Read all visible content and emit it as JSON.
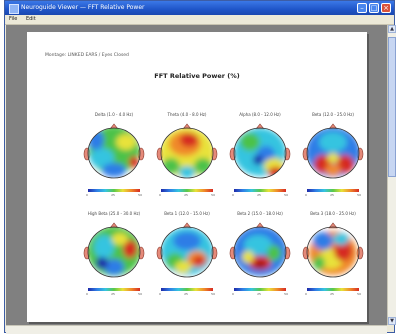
{
  "window": {
    "title": "Neuroguide Viewer — FFT Relative Power",
    "menu": [
      "File",
      "Edit"
    ]
  },
  "page": {
    "header_note": "Montage: LINKED EARS / Eyes Closed",
    "heading": "FFT Relative Power (%)"
  },
  "maps": [
    {
      "label": "Delta (1.0 - 4.0 Hz)",
      "ticks": [
        "0",
        "25",
        "50"
      ],
      "scheme": "delta"
    },
    {
      "label": "Theta (4.0 - 8.0 Hz)",
      "ticks": [
        "0",
        "25",
        "50"
      ],
      "scheme": "theta"
    },
    {
      "label": "Alpha (8.0 - 12.0 Hz)",
      "ticks": [
        "0",
        "25",
        "50"
      ],
      "scheme": "alpha"
    },
    {
      "label": "Beta (12.0 - 25.0 Hz)",
      "ticks": [
        "0",
        "25",
        "50"
      ],
      "scheme": "beta"
    },
    {
      "label": "High Beta (25.0 - 30.0 Hz)",
      "ticks": [
        "0",
        "25",
        "50"
      ],
      "scheme": "hibeta"
    },
    {
      "label": "Beta 1 (12.0 - 15.0 Hz)",
      "ticks": [
        "0",
        "25",
        "50"
      ],
      "scheme": "beta1"
    },
    {
      "label": "Beta 2 (15.0 - 18.0 Hz)",
      "ticks": [
        "0",
        "25",
        "50"
      ],
      "scheme": "beta2"
    },
    {
      "label": "Beta 3 (18.0 - 25.0 Hz)",
      "ticks": [
        "0",
        "25",
        "50"
      ],
      "scheme": "beta3"
    }
  ],
  "palette": {
    "deep_blue": "#1e2aa8",
    "blue": "#2f7de6",
    "cyan": "#35c4e0",
    "green": "#4cc24a",
    "yellow": "#e8e23a",
    "orange": "#f08a2a",
    "red": "#d62a24",
    "dark_red": "#a01818"
  }
}
